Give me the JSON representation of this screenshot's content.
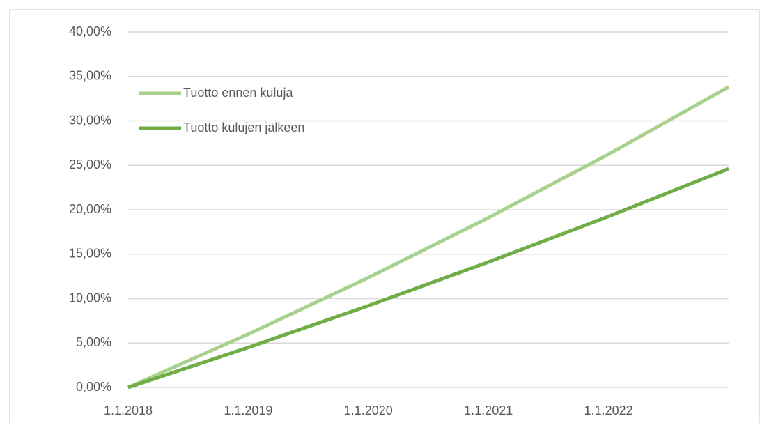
{
  "chart_data": {
    "type": "line",
    "categories": [
      "1.1.2018",
      "1.1.2019",
      "1.1.2020",
      "1.1.2021",
      "1.1.2022",
      null
    ],
    "series": [
      {
        "name": "Tuotto ennen kuluja",
        "color": "#a9d18e",
        "values": [
          0,
          6.0,
          12.36,
          19.1,
          26.25,
          33.82
        ]
      },
      {
        "name": "Tuotto kulujen jälkeen",
        "color": "#70ad47",
        "values": [
          0,
          4.5,
          9.2,
          14.12,
          19.25,
          24.62
        ]
      }
    ],
    "ylim": [
      0,
      40
    ],
    "yticks": [
      {
        "value": 0,
        "label": "0,00%"
      },
      {
        "value": 5,
        "label": "5,00%"
      },
      {
        "value": 10,
        "label": "10,00%"
      },
      {
        "value": 15,
        "label": "15,00%"
      },
      {
        "value": 20,
        "label": "20,00%"
      },
      {
        "value": 25,
        "label": "25,00%"
      },
      {
        "value": 30,
        "label": "30,00%"
      },
      {
        "value": 35,
        "label": "35,00%"
      },
      {
        "value": 40,
        "label": "40,00%"
      }
    ],
    "grid": true,
    "legend": "upper-left"
  }
}
